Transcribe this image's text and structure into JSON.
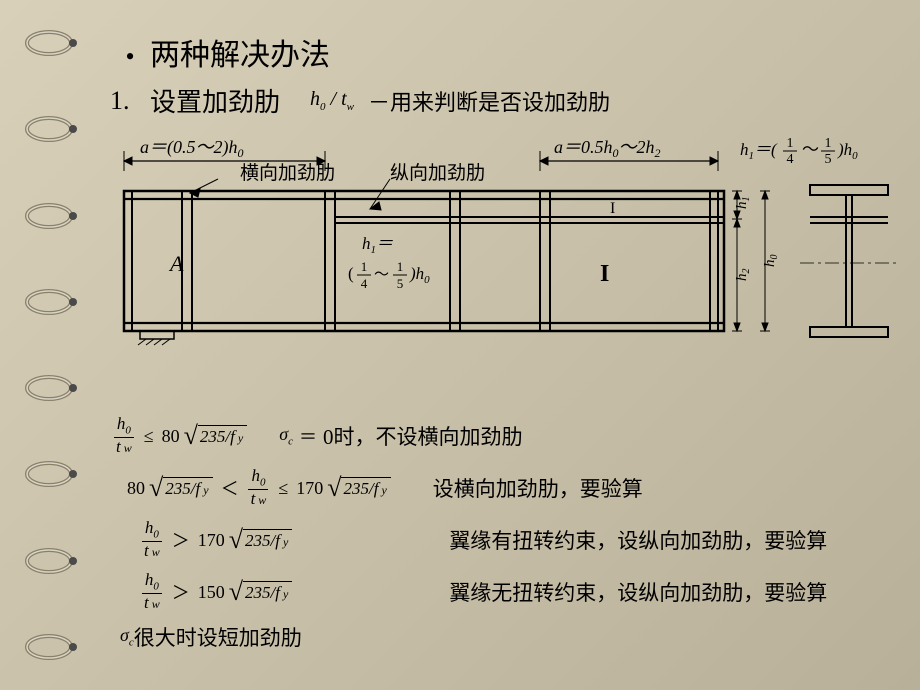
{
  "header": {
    "bullet": "•",
    "title": "两种解决办法",
    "sub_num": "1.",
    "sub_text": "设置加劲肋",
    "ratio_formula": "h₀ / t_w",
    "ratio_desc": "－用来判断是否设加劲肋"
  },
  "diagram": {
    "labels": {
      "a_left": "a＝(0.5～2)h₀",
      "a_right": "a＝0.5h₀～2h₂",
      "transverse": "横向加劲肋",
      "longitudinal": "纵向加劲肋",
      "A": "A",
      "h1_inner": "h₁＝",
      "h1_frac": "(¼～⅕)h₀",
      "I": "I",
      "h1_formula": "h₁＝(¼～⅕)h₀",
      "h1_label": "h₁",
      "h2_label": "h₂",
      "h0_label": "h₀"
    },
    "style": {
      "stroke": "#000000",
      "stroke_width": 2.2,
      "thin_stroke": 1,
      "font_family": "Times New Roman",
      "label_font_size": 18,
      "cjk_font_size": 19
    }
  },
  "formulas": {
    "line1": {
      "lhs_num": "h₀",
      "lhs_den": "t w",
      "cmp": "≤",
      "coef": "80",
      "sqrt": "235/f y",
      "sigma_expr": "σ_c ＝ 0时，不设横向加劲肋"
    },
    "line2": {
      "coef_left": "80",
      "sqrt_left": "235/f y",
      "cmp1": "＜",
      "mid_num": "h₀",
      "mid_den": "t w",
      "cmp2": "≤",
      "coef_right": "170",
      "sqrt_right": "235/f y",
      "desc": "设横向加劲肋，要验算"
    },
    "line3": {
      "num": "h₀",
      "den": "t w",
      "cmp": "＞",
      "coef": "170",
      "sqrt": "235/f y",
      "desc": "翼缘有扭转约束，设纵向加劲肋，要验算"
    },
    "line4": {
      "num": "h₀",
      "den": "t w",
      "cmp": "＞",
      "coef": "150",
      "sqrt": "235/f y",
      "desc": "翼缘无扭转约束，设纵向加劲肋，要验算"
    },
    "line5": "σ_c 很大时设短加劲肋"
  },
  "style": {
    "page_bg_start": "#d8d0b8",
    "page_bg_end": "#b8b098",
    "text_color": "#000000",
    "title_fontsize": 30,
    "body_fontsize": 21,
    "formula_fontsize": 18,
    "ring_count": 8,
    "ring_color": "#8a8068",
    "ring_highlight": "#d8d4c8"
  }
}
